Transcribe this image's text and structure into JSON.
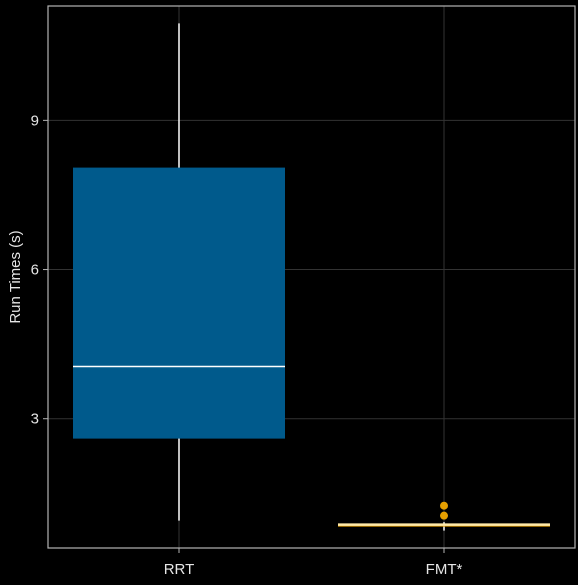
{
  "chart_data": {
    "type": "boxplot",
    "title": "",
    "xlabel": "",
    "ylabel": "Run Times (s)",
    "categories": [
      "RRT",
      "FMT*"
    ],
    "yticks": [
      "3",
      "6",
      "9"
    ],
    "ylim": [
      0.4,
      11.3
    ],
    "grid": true,
    "colors": {
      "background": "#000000",
      "frame": "#b3b3b3",
      "grid": "#333333",
      "rrt_box": "#005a8c",
      "fmt_box": "#e69f00",
      "median_line": "#ffffff",
      "whisker": "#ffffff",
      "fmt_median": "#ffe9a8"
    },
    "boxes": [
      {
        "name": "RRT",
        "whisker_low": 0.95,
        "q1": 2.6,
        "median": 4.05,
        "q3": 8.05,
        "whisker_high": 10.95,
        "outliers": []
      },
      {
        "name": "FMT*",
        "whisker_low": 0.75,
        "q1": 0.83,
        "median": 0.87,
        "q3": 0.89,
        "whisker_high": 0.92,
        "outliers": [
          1.05,
          1.25
        ]
      }
    ]
  }
}
